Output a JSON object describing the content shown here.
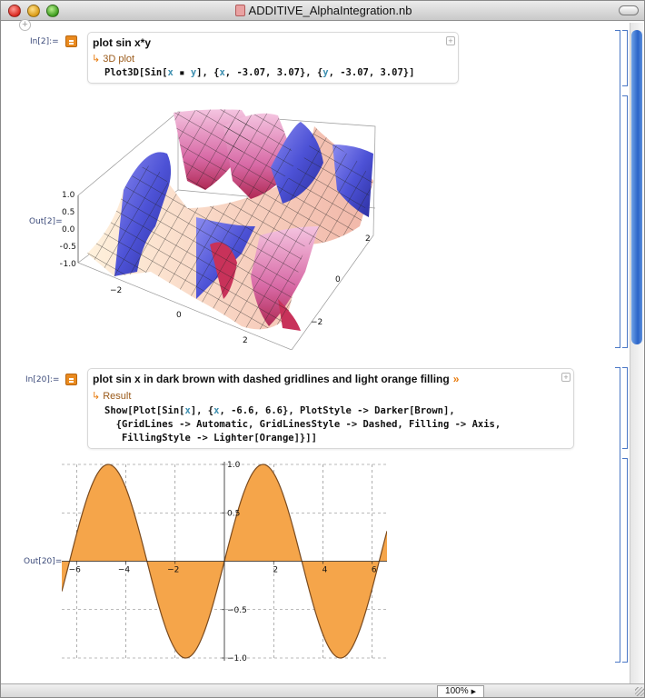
{
  "window": {
    "title": "ADDITIVE_AlphaIntegration.nb",
    "zoom": "100%"
  },
  "cells": [
    {
      "in_label": "In[2]:=",
      "query": "plot sin x*y",
      "pod_title": "3D plot",
      "code": {
        "fn": "Plot3D[Sin[",
        "x": "x",
        "mul": " ▪ ",
        "y": "y",
        "mid1": "], {",
        "mid2": ", -3.07, 3.07}, {",
        "tail": ", -3.07, 3.07}]"
      },
      "out_label": "Out[2]=",
      "plot3d": {
        "z_ticks": [
          "1.0",
          "0.5",
          "0.0",
          "−0.5",
          "−1.0"
        ],
        "x_ticks": [
          "−2",
          "0",
          "2"
        ],
        "y_ticks": [
          "2",
          "0",
          "−2"
        ]
      }
    },
    {
      "in_label": "In[20]:=",
      "query": "plot sin x in dark brown with dashed gridlines and light orange filling",
      "query_arrow": "»",
      "pod_title": "Result",
      "code": {
        "l1a": "Show[Plot[Sin[",
        "l1x": "x",
        "l1b": "], {",
        "l1x2": "x",
        "l1c": ", -6.6, 6.6}, PlotStyle -> Darker[Brown],",
        "l2": "  {GridLines -> Automatic, GridLinesStyle -> Dashed, Filling -> Axis,",
        "l3": "   FillingStyle -> Lighter[Orange]}]]"
      },
      "out_label": "Out[20]="
    }
  ],
  "chart_data": {
    "type": "area",
    "title": "",
    "xlabel": "",
    "ylabel": "",
    "function": "sin(x)",
    "xlim": [
      -6.6,
      6.6
    ],
    "ylim": [
      -1.0,
      1.0
    ],
    "x_ticks": [
      -6,
      -4,
      -2,
      2,
      4,
      6
    ],
    "y_ticks": [
      1.0,
      0.5,
      -0.5,
      -1.0
    ],
    "x_tick_labels": [
      "−6",
      "−4",
      "−2",
      "2",
      "4",
      "6"
    ],
    "y_tick_labels": [
      "1.0",
      "0.5",
      "−0.5",
      "−1.0"
    ],
    "grid": true,
    "grid_style": "dashed",
    "line_color": "#7a4a1e",
    "fill_color": "#f5a54a",
    "sample_points": {
      "x": [
        -6.6,
        -6.0,
        -5.0,
        -4.0,
        -3.0,
        -2.0,
        -1.0,
        0.0,
        1.0,
        2.0,
        3.0,
        4.0,
        5.0,
        6.0,
        6.6
      ],
      "y": [
        -0.31,
        0.28,
        0.96,
        0.76,
        -0.14,
        -0.91,
        -0.84,
        0.0,
        0.84,
        0.91,
        0.14,
        -0.76,
        -0.96,
        -0.28,
        0.31
      ]
    }
  },
  "colors": {
    "accent": "#e98a1f",
    "bracket": "#4b78c6",
    "label": "#3c4b7a"
  }
}
